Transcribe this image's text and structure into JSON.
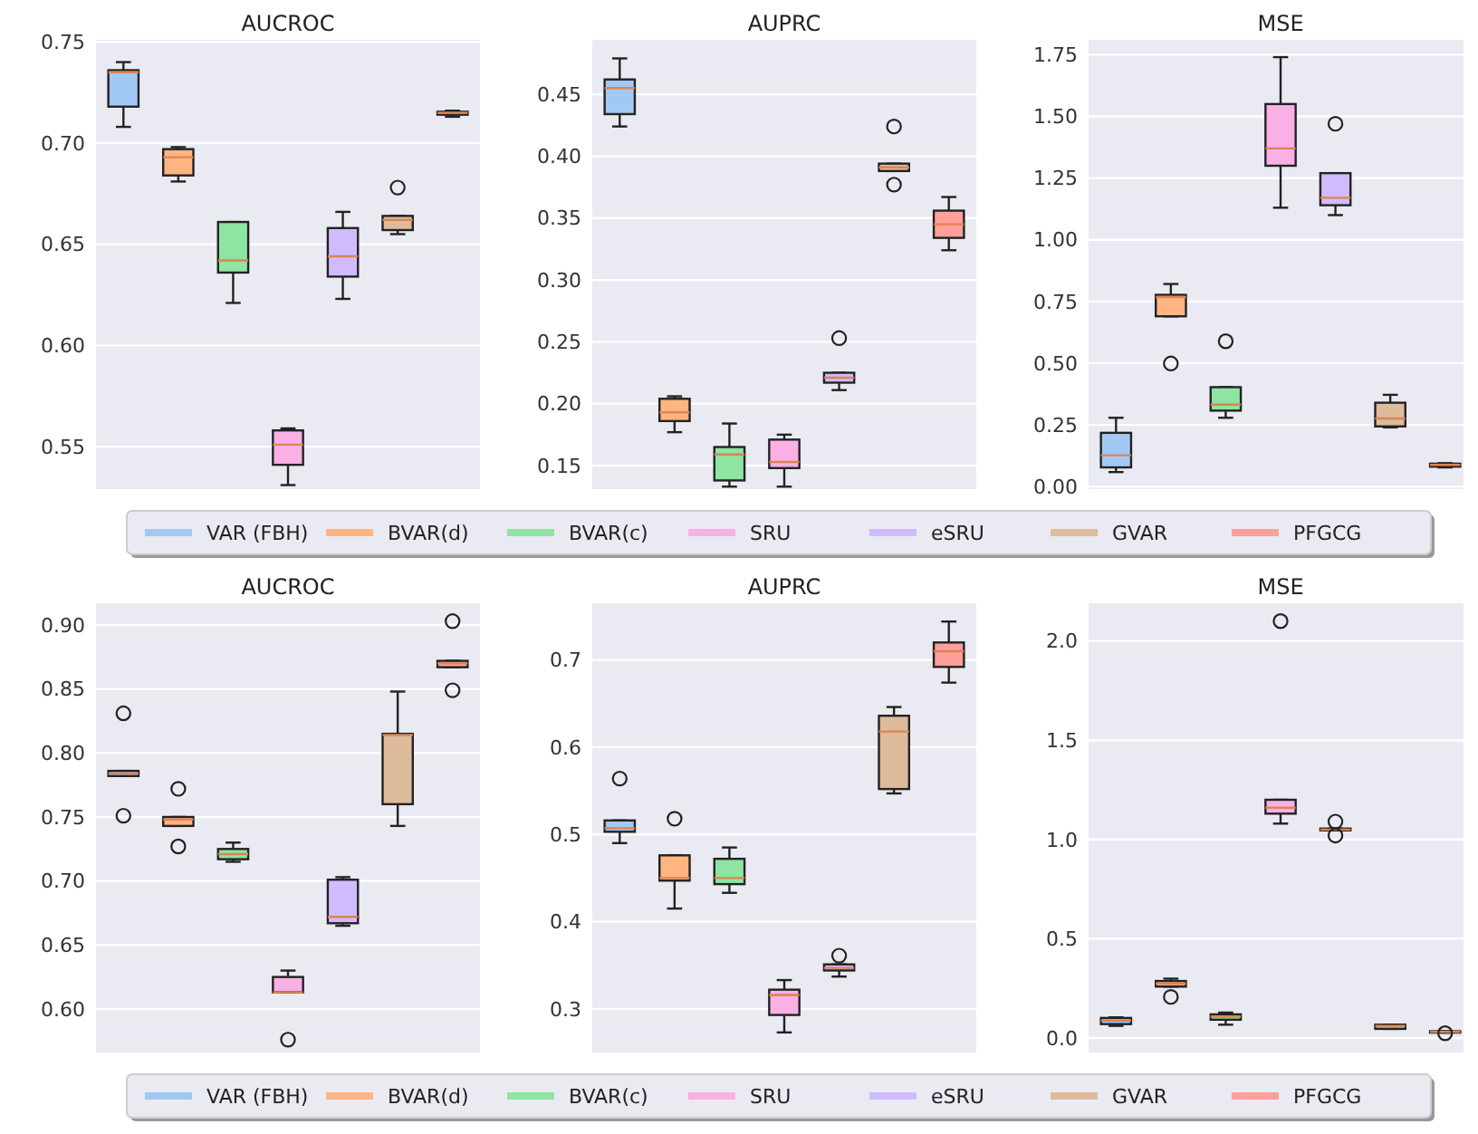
{
  "chart_data": [
    {
      "type": "box",
      "title": "AUCROC",
      "categories": [
        null,
        null,
        null,
        null,
        null,
        null,
        null
      ],
      "ylim": [
        0.529,
        0.751
      ],
      "yticks": [
        0.55,
        {
          "value": 0.6,
          "label": "0.60"
        },
        0.65,
        {
          "value": 0.7,
          "label": "0.70"
        },
        0.75
      ],
      "grid": "y",
      "legend": "bottom",
      "series": [
        {
          "name": "VAR (FBH)",
          "color": "#a1c9f4",
          "boxes": [
            {
              "low": 0.708,
              "q1": 0.718,
              "median": 0.735,
              "q3": 0.736,
              "high": 0.74
            },
            null,
            null,
            null,
            null,
            null,
            null
          ]
        },
        {
          "name": "BVAR(d)",
          "color": "#ffb482",
          "boxes": [
            null,
            {
              "low": 0.681,
              "q1": 0.684,
              "median": 0.693,
              "q3": 0.697,
              "high": 0.698
            },
            null,
            null,
            null,
            null,
            null
          ]
        },
        {
          "name": "BVAR(c)",
          "color": "#8de5a1",
          "boxes": [
            null,
            null,
            {
              "low": 0.621,
              "q1": 0.636,
              "median": 0.642,
              "q3": 0.661,
              "high": 0.661
            },
            null,
            null,
            null,
            null
          ]
        },
        {
          "name": "SRU",
          "color": "#fab0e4",
          "boxes": [
            null,
            null,
            null,
            {
              "low": 0.531,
              "q1": 0.541,
              "median": 0.551,
              "q3": 0.558,
              "high": 0.559
            },
            null,
            null,
            null
          ]
        },
        {
          "name": "eSRU",
          "color": "#d0bbff",
          "boxes": [
            null,
            null,
            null,
            null,
            {
              "low": 0.623,
              "q1": 0.634,
              "median": 0.644,
              "q3": 0.658,
              "high": 0.666
            },
            null,
            null
          ]
        },
        {
          "name": "GVAR",
          "color": "#debb9b",
          "boxes": [
            null,
            null,
            null,
            null,
            null,
            {
              "low": 0.655,
              "q1": 0.657,
              "median": 0.662,
              "q3": 0.664,
              "high": 0.664,
              "outliers": [
                0.678
              ]
            },
            null
          ]
        },
        {
          "name": "PFGCG",
          "color": "#ff9f9b",
          "boxes": [
            null,
            null,
            null,
            null,
            null,
            null,
            {
              "low": 0.713,
              "q1": 0.714,
              "median": 0.715,
              "q3": 0.7155,
              "high": 0.716
            }
          ]
        }
      ]
    },
    {
      "type": "box",
      "title": "AUPRC",
      "categories": [
        null,
        null,
        null,
        null,
        null,
        null,
        null
      ],
      "ylim": [
        0.131,
        0.494
      ],
      "yticks": [
        0.15,
        {
          "value": 0.2,
          "label": "0.20"
        },
        0.25,
        {
          "value": 0.3,
          "label": "0.30"
        },
        0.35,
        {
          "value": 0.4,
          "label": "0.40"
        },
        0.45
      ],
      "grid": "y",
      "series": [
        {
          "color": "#a1c9f4",
          "boxes": [
            {
              "low": 0.424,
              "q1": 0.434,
              "median": 0.455,
              "q3": 0.462,
              "high": 0.479
            },
            null,
            null,
            null,
            null,
            null,
            null
          ]
        },
        {
          "color": "#ffb482",
          "boxes": [
            null,
            {
              "low": 0.177,
              "q1": 0.186,
              "median": 0.193,
              "q3": 0.204,
              "high": 0.206
            },
            null,
            null,
            null,
            null,
            null
          ]
        },
        {
          "color": "#8de5a1",
          "boxes": [
            null,
            null,
            {
              "low": 0.133,
              "q1": 0.138,
              "median": 0.159,
              "q3": 0.165,
              "high": 0.184
            },
            null,
            null,
            null,
            null
          ]
        },
        {
          "color": "#fab0e4",
          "boxes": [
            null,
            null,
            null,
            {
              "low": 0.133,
              "q1": 0.148,
              "median": 0.153,
              "q3": 0.171,
              "high": 0.175
            },
            null,
            null,
            null
          ]
        },
        {
          "color": "#d0bbff",
          "boxes": [
            null,
            null,
            null,
            null,
            {
              "low": 0.211,
              "q1": 0.217,
              "median": 0.221,
              "q3": 0.225,
              "high": 0.225,
              "outliers": [
                0.253
              ]
            },
            null,
            null
          ]
        },
        {
          "color": "#debb9b",
          "boxes": [
            null,
            null,
            null,
            null,
            null,
            {
              "low": 0.388,
              "q1": 0.388,
              "median": 0.391,
              "q3": 0.394,
              "high": 0.394,
              "outliers": [
                0.424,
                0.377
              ]
            },
            null
          ]
        },
        {
          "color": "#ff9f9b",
          "boxes": [
            null,
            null,
            null,
            null,
            null,
            null,
            {
              "low": 0.324,
              "q1": 0.334,
              "median": 0.345,
              "q3": 0.356,
              "high": 0.367
            }
          ]
        }
      ]
    },
    {
      "type": "box",
      "title": "MSE",
      "categories": [
        null,
        null,
        null,
        null,
        null,
        null,
        null
      ],
      "ylim": [
        -0.01,
        1.81
      ],
      "yticks": [
        {
          "value": 0,
          "label": "0.00"
        },
        0.25,
        {
          "value": 0.5,
          "label": "0.50"
        },
        0.75,
        {
          "value": 1,
          "label": "1.00"
        },
        1.25,
        {
          "value": 1.5,
          "label": "1.50"
        },
        1.75
      ],
      "grid": "y",
      "series": [
        {
          "color": "#a1c9f4",
          "boxes": [
            {
              "low": 0.059,
              "q1": 0.078,
              "median": 0.127,
              "q3": 0.218,
              "high": 0.279
            },
            null,
            null,
            null,
            null,
            null,
            null
          ]
        },
        {
          "color": "#ffb482",
          "boxes": [
            null,
            {
              "low": 0.69,
              "q1": 0.69,
              "median": 0.768,
              "q3": 0.777,
              "high": 0.821,
              "outliers": [
                0.499
              ]
            },
            null,
            null,
            null,
            null,
            null
          ]
        },
        {
          "color": "#8de5a1",
          "boxes": [
            null,
            null,
            {
              "low": 0.279,
              "q1": 0.308,
              "median": 0.332,
              "q3": 0.403,
              "high": 0.403,
              "outliers": [
                0.589
              ]
            },
            null,
            null,
            null,
            null
          ]
        },
        {
          "color": "#fab0e4",
          "boxes": [
            null,
            null,
            null,
            {
              "low": 1.13,
              "q1": 1.3,
              "median": 1.37,
              "q3": 1.55,
              "high": 1.74
            },
            null,
            null,
            null
          ]
        },
        {
          "color": "#d0bbff",
          "boxes": [
            null,
            null,
            null,
            null,
            {
              "low": 1.1,
              "q1": 1.14,
              "median": 1.17,
              "q3": 1.27,
              "high": 1.27,
              "outliers": [
                1.47
              ]
            },
            null,
            null
          ]
        },
        {
          "color": "#debb9b",
          "boxes": [
            null,
            null,
            null,
            null,
            null,
            {
              "low": 0.24,
              "q1": 0.244,
              "median": 0.276,
              "q3": 0.34,
              "high": 0.372
            },
            null
          ]
        },
        {
          "color": "#ff9f9b",
          "boxes": [
            null,
            null,
            null,
            null,
            null,
            null,
            {
              "low": 0.078,
              "q1": 0.081,
              "median": 0.088,
              "q3": 0.093,
              "high": 0.095
            }
          ]
        }
      ]
    },
    {
      "type": "box",
      "title": "AUCROC",
      "categories": [
        null,
        null,
        null,
        null,
        null,
        null,
        null
      ],
      "ylim": [
        0.566,
        0.917
      ],
      "yticks": [
        {
          "value": 0.6,
          "label": "0.60"
        },
        0.65,
        {
          "value": 0.7,
          "label": "0.70"
        },
        0.75,
        {
          "value": 0.8,
          "label": "0.80"
        },
        0.85,
        {
          "value": 0.9,
          "label": "0.90"
        }
      ],
      "grid": "y",
      "legend": "bottom",
      "series": [
        {
          "name": "VAR (FBH)",
          "color": "#a1c9f4",
          "boxes": [
            {
              "low": 0.782,
              "q1": 0.782,
              "median": 0.784,
              "q3": 0.786,
              "high": 0.786,
              "outliers": [
                0.831,
                0.751
              ]
            },
            null,
            null,
            null,
            null,
            null,
            null
          ]
        },
        {
          "name": "BVAR(d)",
          "color": "#ffb482",
          "boxes": [
            null,
            {
              "low": 0.743,
              "q1": 0.743,
              "median": 0.748,
              "q3": 0.75,
              "high": 0.75,
              "outliers": [
                0.772,
                0.727
              ]
            },
            null,
            null,
            null,
            null,
            null
          ]
        },
        {
          "name": "BVAR(c)",
          "color": "#8de5a1",
          "boxes": [
            null,
            null,
            {
              "low": 0.715,
              "q1": 0.717,
              "median": 0.721,
              "q3": 0.725,
              "high": 0.73
            },
            null,
            null,
            null,
            null
          ]
        },
        {
          "name": "SRU",
          "color": "#fab0e4",
          "boxes": [
            null,
            null,
            null,
            {
              "low": 0.613,
              "q1": 0.613,
              "median": 0.613,
              "q3": 0.625,
              "high": 0.63,
              "outliers": [
                0.576
              ]
            },
            null,
            null,
            null
          ]
        },
        {
          "name": "eSRU",
          "color": "#d0bbff",
          "boxes": [
            null,
            null,
            null,
            null,
            {
              "low": 0.665,
              "q1": 0.667,
              "median": 0.672,
              "q3": 0.701,
              "high": 0.703
            },
            null,
            null
          ]
        },
        {
          "name": "GVAR",
          "color": "#debb9b",
          "boxes": [
            null,
            null,
            null,
            null,
            null,
            {
              "low": 0.743,
              "q1": 0.76,
              "median": 0.814,
              "q3": 0.815,
              "high": 0.848
            },
            null
          ]
        },
        {
          "name": "PFGCG",
          "color": "#ff9f9b",
          "boxes": [
            null,
            null,
            null,
            null,
            null,
            null,
            {
              "low": 0.867,
              "q1": 0.867,
              "median": 0.87,
              "q3": 0.872,
              "high": 0.872,
              "outliers": [
                0.903,
                0.849
              ]
            }
          ]
        }
      ]
    },
    {
      "type": "box",
      "title": "AUPRC",
      "categories": [
        null,
        null,
        null,
        null,
        null,
        null,
        null
      ],
      "ylim": [
        0.25,
        0.765
      ],
      "yticks": [
        0.3,
        0.4,
        0.5,
        0.6,
        0.7
      ],
      "grid": "y",
      "series": [
        {
          "color": "#a1c9f4",
          "boxes": [
            {
              "low": 0.49,
              "q1": 0.503,
              "median": 0.507,
              "q3": 0.516,
              "high": 0.516,
              "outliers": [
                0.564
              ]
            },
            null,
            null,
            null,
            null,
            null,
            null
          ]
        },
        {
          "color": "#ffb482",
          "boxes": [
            null,
            {
              "low": 0.415,
              "q1": 0.447,
              "median": 0.45,
              "q3": 0.476,
              "high": 0.476,
              "outliers": [
                0.518
              ]
            },
            null,
            null,
            null,
            null,
            null
          ]
        },
        {
          "color": "#8de5a1",
          "boxes": [
            null,
            null,
            {
              "low": 0.433,
              "q1": 0.443,
              "median": 0.45,
              "q3": 0.472,
              "high": 0.485
            },
            null,
            null,
            null,
            null
          ]
        },
        {
          "color": "#fab0e4",
          "boxes": [
            null,
            null,
            null,
            {
              "low": 0.273,
              "q1": 0.293,
              "median": 0.316,
              "q3": 0.322,
              "high": 0.333
            },
            null,
            null,
            null
          ]
        },
        {
          "color": "#d0bbff",
          "boxes": [
            null,
            null,
            null,
            null,
            {
              "low": 0.337,
              "q1": 0.344,
              "median": 0.347,
              "q3": 0.351,
              "high": 0.351,
              "outliers": [
                0.361
              ]
            },
            null,
            null
          ]
        },
        {
          "color": "#debb9b",
          "boxes": [
            null,
            null,
            null,
            null,
            null,
            {
              "low": 0.547,
              "q1": 0.552,
              "median": 0.618,
              "q3": 0.636,
              "high": 0.646
            },
            null
          ]
        },
        {
          "color": "#ff9f9b",
          "boxes": [
            null,
            null,
            null,
            null,
            null,
            null,
            {
              "low": 0.674,
              "q1": 0.692,
              "median": 0.71,
              "q3": 0.72,
              "high": 0.744
            }
          ]
        }
      ]
    },
    {
      "type": "box",
      "title": "MSE",
      "categories": [
        null,
        null,
        null,
        null,
        null,
        null,
        null
      ],
      "ylim": [
        -0.073,
        2.19
      ],
      "yticks": [
        {
          "value": 0,
          "label": "0.0"
        },
        0.5,
        {
          "value": 1,
          "label": "1.0"
        },
        1.5,
        {
          "value": 2,
          "label": "2.0"
        }
      ],
      "grid": "y",
      "series": [
        {
          "color": "#a1c9f4",
          "boxes": [
            {
              "low": 0.061,
              "q1": 0.07,
              "median": 0.088,
              "q3": 0.101,
              "high": 0.104
            },
            null,
            null,
            null,
            null,
            null,
            null
          ]
        },
        {
          "color": "#ffb482",
          "boxes": [
            null,
            {
              "low": 0.259,
              "q1": 0.259,
              "median": 0.274,
              "q3": 0.287,
              "high": 0.299,
              "outliers": [
                0.207
              ]
            },
            null,
            null,
            null,
            null,
            null
          ]
        },
        {
          "color": "#8de5a1",
          "boxes": [
            null,
            null,
            {
              "low": 0.067,
              "q1": 0.092,
              "median": 0.107,
              "q3": 0.119,
              "high": 0.128
            },
            null,
            null,
            null,
            null
          ]
        },
        {
          "color": "#fab0e4",
          "boxes": [
            null,
            null,
            null,
            {
              "low": 1.08,
              "q1": 1.13,
              "median": 1.16,
              "q3": 1.2,
              "high": 1.2,
              "outliers": [
                2.1
              ]
            },
            null,
            null,
            null
          ]
        },
        {
          "color": "#d0bbff",
          "boxes": [
            null,
            null,
            null,
            null,
            {
              "low": 1.046,
              "q1": 1.046,
              "median": 1.05,
              "q3": 1.055,
              "high": 1.055,
              "outliers": [
                1.09,
                1.02
              ]
            },
            null,
            null
          ]
        },
        {
          "color": "#debb9b",
          "boxes": [
            null,
            null,
            null,
            null,
            null,
            {
              "low": 0.046,
              "q1": 0.046,
              "median": 0.061,
              "q3": 0.067,
              "high": 0.067
            },
            null
          ]
        },
        {
          "color": "#ff9f9b",
          "boxes": [
            null,
            null,
            null,
            null,
            null,
            null,
            {
              "low": 0.027,
              "q1": 0.027,
              "median": 0.031,
              "q3": 0.034,
              "high": 0.034,
              "outliers": [
                0.024
              ]
            }
          ]
        }
      ]
    }
  ]
}
